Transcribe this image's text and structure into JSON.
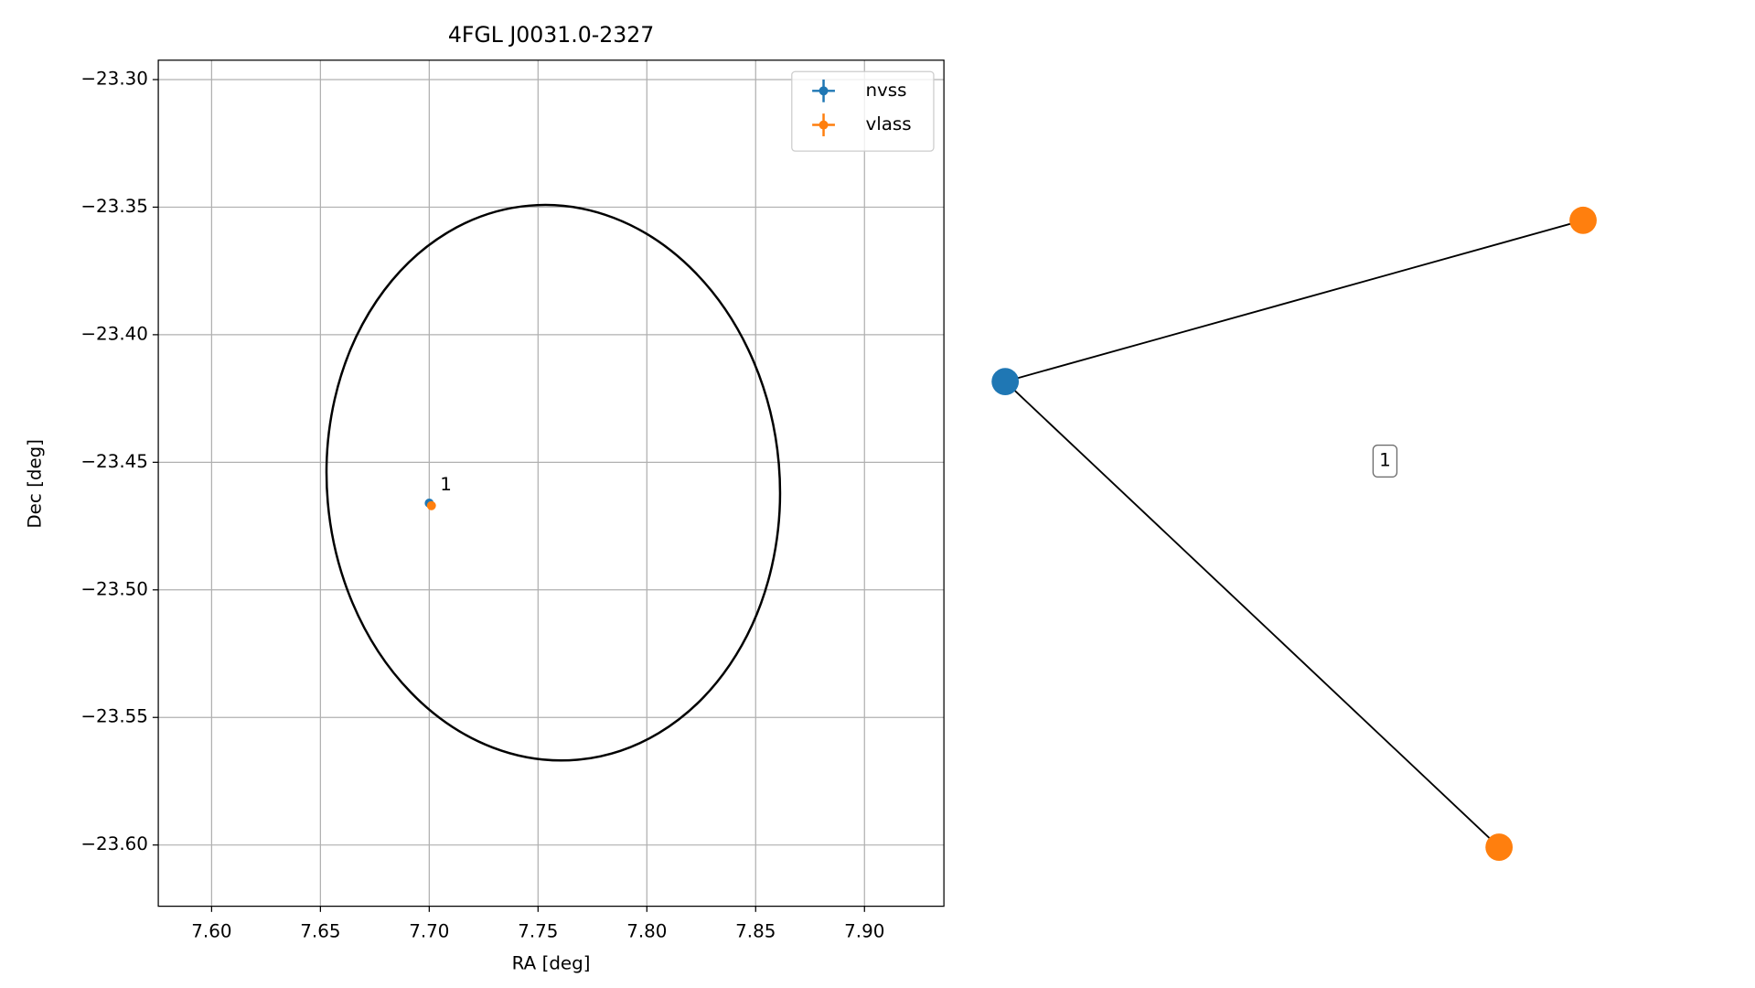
{
  "chart_data": [
    {
      "type": "scatter",
      "title": "4FGL J0031.0-2327",
      "xlabel": "RA [deg]",
      "ylabel": "Dec [deg]",
      "xlim": [
        7.5755,
        7.9365
      ],
      "ylim": [
        -23.624,
        -23.2924
      ],
      "grid": true,
      "legend": "upper right",
      "xticks": [
        {
          "value": 7.6,
          "label": "7.60"
        },
        {
          "value": 7.65,
          "label": "7.65"
        },
        {
          "value": 7.7,
          "label": "7.70"
        },
        {
          "value": 7.75,
          "label": "7.75"
        },
        {
          "value": 7.8,
          "label": "7.80"
        },
        {
          "value": 7.85,
          "label": "7.85"
        },
        {
          "value": 7.9,
          "label": "7.90"
        }
      ],
      "yticks": [
        {
          "value": -23.3,
          "label": "−23.30"
        },
        {
          "value": -23.35,
          "label": "−23.35"
        },
        {
          "value": -23.4,
          "label": "−23.40"
        },
        {
          "value": -23.45,
          "label": "−23.45"
        },
        {
          "value": -23.5,
          "label": "−23.50"
        },
        {
          "value": -23.55,
          "label": "−23.55"
        },
        {
          "value": -23.6,
          "label": "−23.60"
        }
      ],
      "series": [
        {
          "name": "nvss",
          "color": "#1f77b4",
          "x": [
            7.7
          ],
          "values": [
            -23.466
          ]
        },
        {
          "name": "vlass",
          "color": "#ff7f0e",
          "x": [
            7.701
          ],
          "values": [
            -23.467
          ]
        }
      ],
      "ellipse": {
        "x": 7.757,
        "y": -23.458,
        "rx": 0.104,
        "ry": 0.109,
        "angle": -5,
        "color": "#000000"
      },
      "annotations": [
        {
          "text": "1",
          "x": 7.705,
          "y": -23.459
        }
      ]
    },
    {
      "type": "network",
      "edge_color": "#000000",
      "nodes": [
        {
          "color": "#1f77b4"
        },
        {
          "color": "#ff7f0e"
        },
        {
          "color": "#ff7f0e"
        }
      ],
      "edges": [
        [
          0,
          1
        ],
        [
          0,
          2
        ]
      ],
      "label": "1"
    }
  ]
}
